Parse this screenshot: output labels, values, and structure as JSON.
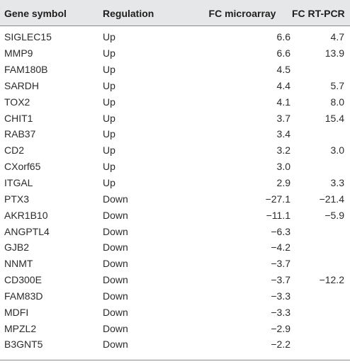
{
  "table": {
    "headers": [
      "Gene symbol",
      "Regulation",
      "FC microarray",
      "FC RT-PCR"
    ],
    "rows": [
      {
        "gene": "SIGLEC15",
        "regulation": "Up",
        "fc_microarray": "6.6",
        "fc_rtpcr": "4.7"
      },
      {
        "gene": "MMP9",
        "regulation": "Up",
        "fc_microarray": "6.6",
        "fc_rtpcr": "13.9"
      },
      {
        "gene": "FAM180B",
        "regulation": "Up",
        "fc_microarray": "4.5",
        "fc_rtpcr": ""
      },
      {
        "gene": "SARDH",
        "regulation": "Up",
        "fc_microarray": "4.4",
        "fc_rtpcr": "5.7"
      },
      {
        "gene": "TOX2",
        "regulation": "Up",
        "fc_microarray": "4.1",
        "fc_rtpcr": "8.0"
      },
      {
        "gene": "CHIT1",
        "regulation": "Up",
        "fc_microarray": "3.7",
        "fc_rtpcr": "15.4"
      },
      {
        "gene": "RAB37",
        "regulation": "Up",
        "fc_microarray": "3.4",
        "fc_rtpcr": ""
      },
      {
        "gene": "CD2",
        "regulation": "Up",
        "fc_microarray": "3.2",
        "fc_rtpcr": "3.0"
      },
      {
        "gene": "CXorf65",
        "regulation": "Up",
        "fc_microarray": "3.0",
        "fc_rtpcr": ""
      },
      {
        "gene": "ITGAL",
        "regulation": "Up",
        "fc_microarray": "2.9",
        "fc_rtpcr": "3.3"
      },
      {
        "gene": "PTX3",
        "regulation": "Down",
        "fc_microarray": "−27.1",
        "fc_rtpcr": "−21.4"
      },
      {
        "gene": "AKR1B10",
        "regulation": "Down",
        "fc_microarray": "−11.1",
        "fc_rtpcr": "−5.9"
      },
      {
        "gene": "ANGPTL4",
        "regulation": "Down",
        "fc_microarray": "−6.3",
        "fc_rtpcr": ""
      },
      {
        "gene": "GJB2",
        "regulation": "Down",
        "fc_microarray": "−4.2",
        "fc_rtpcr": ""
      },
      {
        "gene": "NNMT",
        "regulation": "Down",
        "fc_microarray": "−3.7",
        "fc_rtpcr": ""
      },
      {
        "gene": "CD300E",
        "regulation": "Down",
        "fc_microarray": "−3.7",
        "fc_rtpcr": "−12.2"
      },
      {
        "gene": "FAM83D",
        "regulation": "Down",
        "fc_microarray": "−3.3",
        "fc_rtpcr": ""
      },
      {
        "gene": "MDFI",
        "regulation": "Down",
        "fc_microarray": "−3.3",
        "fc_rtpcr": ""
      },
      {
        "gene": "MPZL2",
        "regulation": "Down",
        "fc_microarray": "−2.9",
        "fc_rtpcr": ""
      },
      {
        "gene": "B3GNT5",
        "regulation": "Down",
        "fc_microarray": "−2.2",
        "fc_rtpcr": ""
      }
    ]
  },
  "colors": {
    "header_background": "#e6e7e8",
    "rule": "#8a8a8a",
    "text": "#2b2b2b"
  }
}
